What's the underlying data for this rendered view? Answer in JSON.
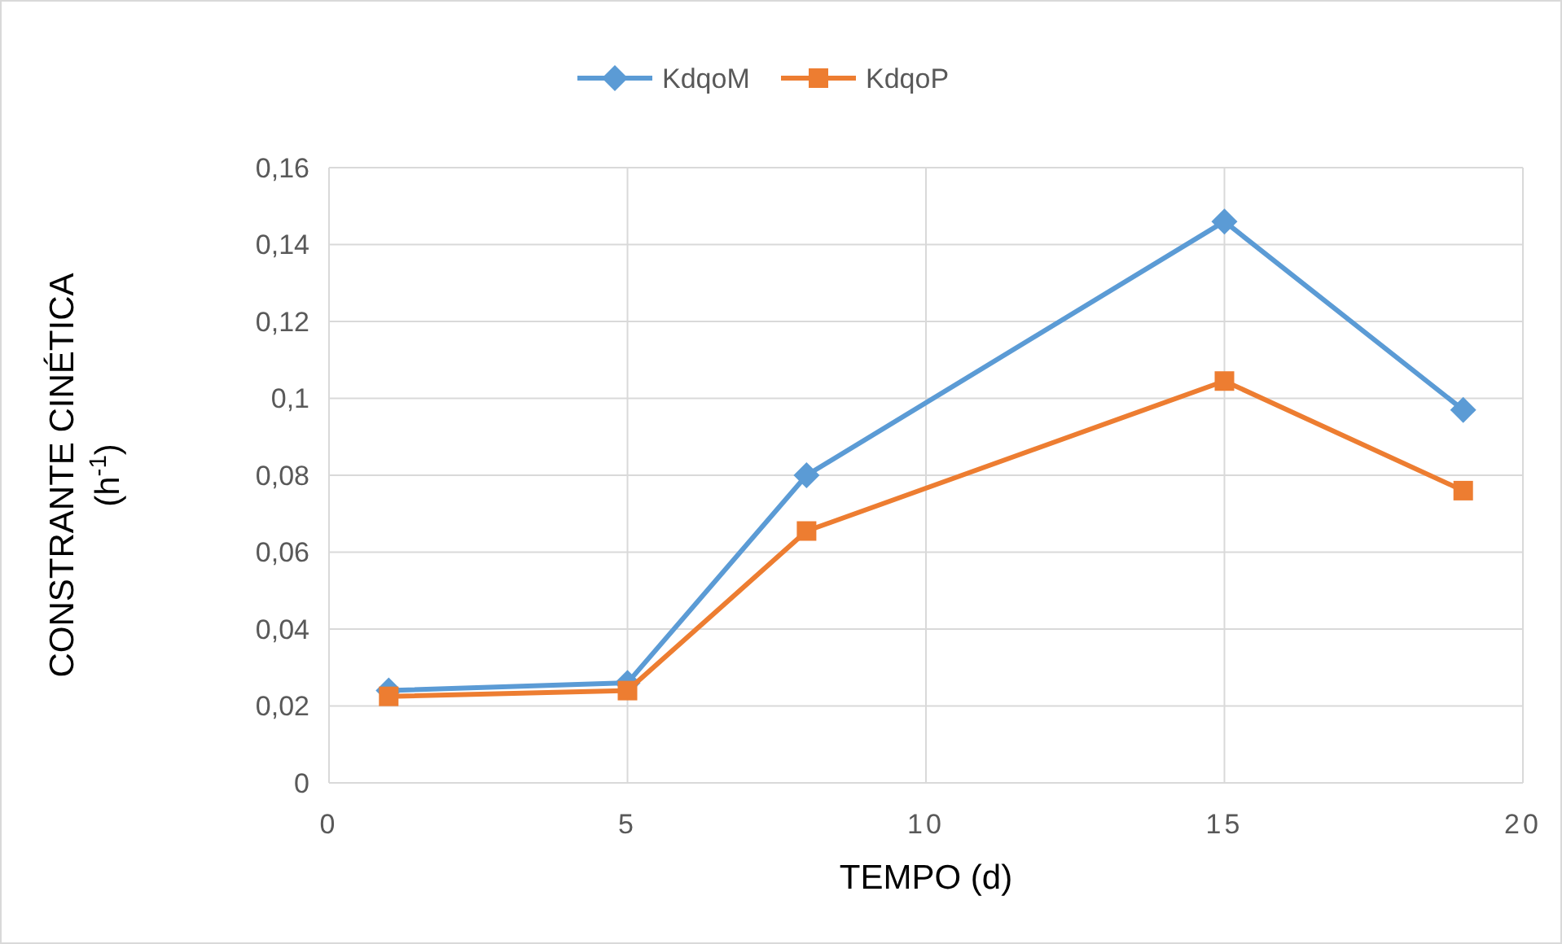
{
  "chart_data": {
    "type": "line",
    "xlabel": "TEMPO (d)",
    "ylabel": "CONSTRANTE CINÉTICA\n(h$^{-1}$)",
    "x": [
      1,
      5,
      8,
      15,
      19
    ],
    "series": [
      {
        "name": "KdqoM",
        "color": "#5b9bd5",
        "marker": "diamond",
        "values": [
          0.024,
          0.026,
          0.08,
          0.146,
          0.097
        ]
      },
      {
        "name": "KdqoP",
        "color": "#ed7d31",
        "marker": "square",
        "values": [
          0.0225,
          0.024,
          0.0655,
          0.1045,
          0.076
        ]
      }
    ],
    "xlim": [
      0,
      20
    ],
    "xticks": [
      0,
      5,
      10,
      15,
      20
    ],
    "ylim": [
      0,
      0.16
    ],
    "yticks": [
      {
        "value": 0,
        "label": "0"
      },
      {
        "value": 0.02,
        "label": "0,02"
      },
      {
        "value": 0.04,
        "label": "0,04"
      },
      {
        "value": 0.06,
        "label": "0,06"
      },
      {
        "value": 0.08,
        "label": "0,08"
      },
      {
        "value": 0.1,
        "label": "0,1"
      },
      {
        "value": 0.12,
        "label": "0,12"
      },
      {
        "value": 0.14,
        "label": "0,14"
      },
      {
        "value": 0.16,
        "label": "0,16"
      }
    ],
    "grid": true,
    "legend": "top",
    "line_style": "solid"
  }
}
